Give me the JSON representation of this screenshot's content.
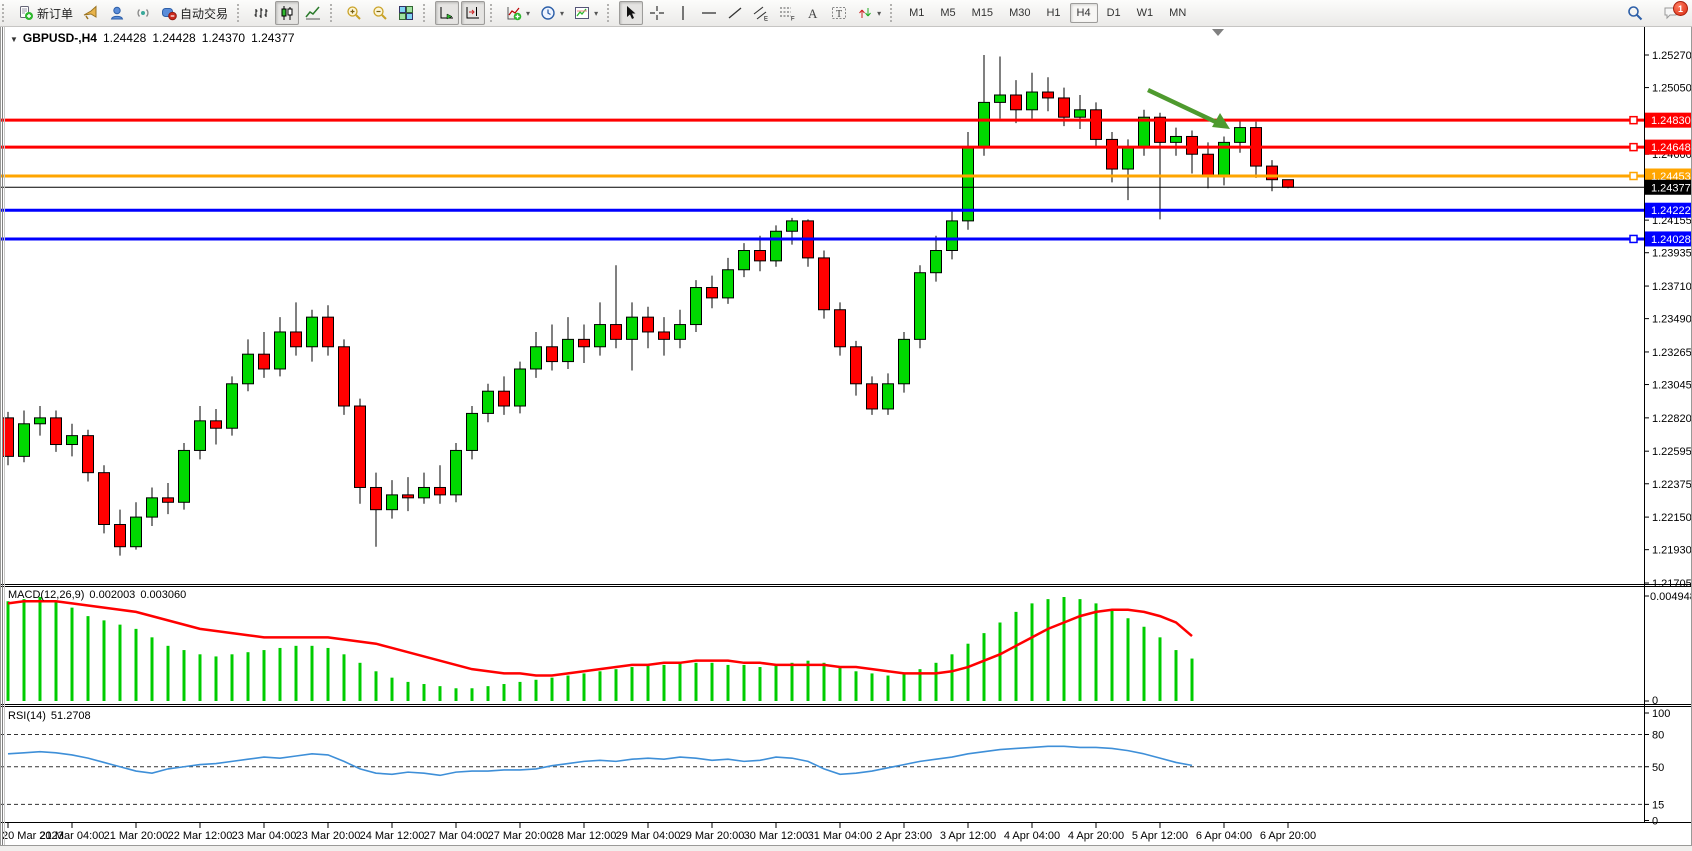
{
  "toolbar": {
    "groups": [
      {
        "buttons": [
          {
            "icon": "new-order",
            "name": "new-order",
            "label": "新订单"
          },
          {
            "icon": "horn",
            "name": "alerts"
          },
          {
            "icon": "profile",
            "name": "profile"
          },
          {
            "icon": "signal",
            "name": "signals"
          },
          {
            "icon": "autotrading",
            "name": "auto-trading",
            "label": "自动交易"
          }
        ]
      },
      {
        "buttons": [
          {
            "icon": "bar-chart",
            "name": "bar-chart-mode"
          },
          {
            "icon": "candlestick",
            "name": "candlestick-mode",
            "pressed": true
          },
          {
            "icon": "line-chart",
            "name": "line-chart-mode"
          }
        ]
      },
      {
        "buttons": [
          {
            "icon": "zoom-in",
            "name": "zoom-in"
          },
          {
            "icon": "zoom-out",
            "name": "zoom-out"
          },
          {
            "icon": "tile-windows",
            "name": "tile-windows"
          }
        ]
      },
      {
        "buttons": [
          {
            "icon": "auto-scroll",
            "name": "auto-scroll",
            "pressed": true
          },
          {
            "icon": "chart-shift",
            "name": "chart-shift",
            "pressed": true
          }
        ]
      },
      {
        "buttons": [
          {
            "icon": "indicators",
            "name": "indicators-list",
            "dropdown": true
          },
          {
            "icon": "periods",
            "name": "periods-list",
            "dropdown": true
          },
          {
            "icon": "templates",
            "name": "templates-list",
            "dropdown": true
          }
        ]
      },
      {
        "buttons": [
          {
            "icon": "cursor",
            "name": "cursor-tool",
            "pressed": true
          },
          {
            "icon": "crosshair",
            "name": "crosshair-tool"
          },
          {
            "icon": "vertical-line",
            "name": "vertical-line-tool"
          },
          {
            "icon": "horizontal-line",
            "name": "horizontal-line-tool"
          },
          {
            "icon": "trendline",
            "name": "trendline-tool"
          },
          {
            "icon": "equidistant-channel",
            "name": "equidistant-channel-tool"
          },
          {
            "icon": "fibonacci",
            "name": "fibonacci-tool"
          },
          {
            "icon": "text",
            "name": "text-tool"
          },
          {
            "icon": "text-label",
            "name": "text-label-tool"
          },
          {
            "icon": "arrows",
            "name": "arrows-tool",
            "dropdown": true
          }
        ]
      }
    ],
    "timeframes": [
      {
        "label": "M1"
      },
      {
        "label": "M5"
      },
      {
        "label": "M15"
      },
      {
        "label": "M30"
      },
      {
        "label": "H1"
      },
      {
        "label": "H4",
        "active": true
      },
      {
        "label": "D1"
      },
      {
        "label": "W1"
      },
      {
        "label": "MN"
      }
    ],
    "right_icons": [
      {
        "icon": "search",
        "name": "search"
      },
      {
        "icon": "chat",
        "name": "notifications",
        "badge": "1"
      }
    ]
  },
  "chart": {
    "title": {
      "collapse_arrow": "▼",
      "symbol": "GBPUSD-,H4",
      "open": "1.24428",
      "high": "1.24428",
      "low": "1.24370",
      "close": "1.24377"
    },
    "price_axis_ticks": [
      "1.25270",
      "1.25050",
      "1.24600",
      "1.24155",
      "1.23935",
      "1.23710",
      "1.23490",
      "1.23265",
      "1.23045",
      "1.22820",
      "1.22595",
      "1.22375",
      "1.22150",
      "1.21930",
      "1.21705"
    ],
    "hlines": [
      {
        "price": "1.24830",
        "color": "#FF0000",
        "width": 3,
        "handle": true
      },
      {
        "price": "1.24648",
        "color": "#FF0000",
        "width": 3,
        "handle": true
      },
      {
        "price": "1.24453",
        "color": "#FFA500",
        "width": 3,
        "handle": true
      },
      {
        "price": "1.24377",
        "color": "#000000",
        "width": 1,
        "handle": false,
        "role": "current-price"
      },
      {
        "price": "1.24222",
        "color": "#0000FF",
        "width": 3,
        "handle": false
      },
      {
        "price": "1.24028",
        "color": "#0000FF",
        "width": 3,
        "handle": true
      }
    ],
    "macd": {
      "name": "MACD(12,26,9)",
      "main": "0.002003",
      "signal": "0.003060",
      "axis_max": "0.004948",
      "axis_min": "0"
    },
    "rsi": {
      "name": "RSI(14)",
      "value": "51.2708",
      "axis_labels": [
        "100",
        "80",
        "50",
        "15",
        "0"
      ]
    }
  },
  "chart_data": {
    "type": "candlestick",
    "symbol": "GBPUSD-",
    "timeframe": "H4",
    "price_range": [
      1.21705,
      1.2527
    ],
    "ohlc": [
      [
        1.2282,
        1.2286,
        1.225,
        1.2256
      ],
      [
        1.2256,
        1.2287,
        1.2252,
        1.2278
      ],
      [
        1.2278,
        1.229,
        1.227,
        1.2282
      ],
      [
        1.2282,
        1.2287,
        1.2259,
        1.2264
      ],
      [
        1.2264,
        1.2278,
        1.2256,
        1.227
      ],
      [
        1.227,
        1.2274,
        1.2239,
        1.2245
      ],
      [
        1.2245,
        1.225,
        1.2204,
        1.221
      ],
      [
        1.221,
        1.222,
        1.2189,
        1.2195
      ],
      [
        1.2195,
        1.2225,
        1.2193,
        1.2215
      ],
      [
        1.2215,
        1.2235,
        1.2209,
        1.2228
      ],
      [
        1.2228,
        1.2238,
        1.2217,
        1.2225
      ],
      [
        1.2225,
        1.2265,
        1.222,
        1.226
      ],
      [
        1.226,
        1.229,
        1.2254,
        1.228
      ],
      [
        1.228,
        1.2288,
        1.2264,
        1.2275
      ],
      [
        1.2275,
        1.231,
        1.227,
        1.2305
      ],
      [
        1.2305,
        1.2335,
        1.23,
        1.2325
      ],
      [
        1.2325,
        1.234,
        1.2309,
        1.2315
      ],
      [
        1.2315,
        1.235,
        1.231,
        1.234
      ],
      [
        1.234,
        1.236,
        1.2324,
        1.233
      ],
      [
        1.233,
        1.2355,
        1.232,
        1.235
      ],
      [
        1.235,
        1.2358,
        1.2324,
        1.233
      ],
      [
        1.233,
        1.2335,
        1.2284,
        1.229
      ],
      [
        1.229,
        1.2295,
        1.2224,
        1.2235
      ],
      [
        1.2235,
        1.2245,
        1.2195,
        1.222
      ],
      [
        1.222,
        1.224,
        1.2214,
        1.223
      ],
      [
        1.223,
        1.2242,
        1.2219,
        1.2228
      ],
      [
        1.2228,
        1.2245,
        1.2224,
        1.2235
      ],
      [
        1.2235,
        1.225,
        1.2224,
        1.223
      ],
      [
        1.223,
        1.2265,
        1.2225,
        1.226
      ],
      [
        1.226,
        1.229,
        1.2254,
        1.2285
      ],
      [
        1.2285,
        1.2305,
        1.2279,
        1.23
      ],
      [
        1.23,
        1.231,
        1.2284,
        1.229
      ],
      [
        1.229,
        1.232,
        1.2285,
        1.2315
      ],
      [
        1.2315,
        1.234,
        1.2309,
        1.233
      ],
      [
        1.233,
        1.2345,
        1.2314,
        1.232
      ],
      [
        1.232,
        1.235,
        1.2315,
        1.2335
      ],
      [
        1.2335,
        1.2345,
        1.2319,
        1.233
      ],
      [
        1.233,
        1.236,
        1.2324,
        1.2345
      ],
      [
        1.2345,
        1.2385,
        1.2329,
        1.2335
      ],
      [
        1.2335,
        1.236,
        1.2314,
        1.235
      ],
      [
        1.235,
        1.2357,
        1.2329,
        1.234
      ],
      [
        1.234,
        1.235,
        1.2324,
        1.2335
      ],
      [
        1.2335,
        1.2355,
        1.2329,
        1.2345
      ],
      [
        1.2345,
        1.2375,
        1.234,
        1.237
      ],
      [
        1.237,
        1.2378,
        1.2356,
        1.2363
      ],
      [
        1.2363,
        1.239,
        1.2359,
        1.2382
      ],
      [
        1.2382,
        1.24,
        1.2377,
        1.2395
      ],
      [
        1.2395,
        1.2405,
        1.2381,
        1.2388
      ],
      [
        1.2388,
        1.2412,
        1.2384,
        1.2408
      ],
      [
        1.2408,
        1.2417,
        1.2399,
        1.2415
      ],
      [
        1.2415,
        1.2416,
        1.2384,
        1.239
      ],
      [
        1.239,
        1.2395,
        1.2349,
        1.2355
      ],
      [
        1.2355,
        1.236,
        1.2324,
        1.233
      ],
      [
        1.233,
        1.2334,
        1.2297,
        1.2305
      ],
      [
        1.2305,
        1.231,
        1.2284,
        1.2288
      ],
      [
        1.2288,
        1.2312,
        1.2284,
        1.2305
      ],
      [
        1.2305,
        1.234,
        1.2299,
        1.2335
      ],
      [
        1.2335,
        1.2385,
        1.2329,
        1.238
      ],
      [
        1.238,
        1.2405,
        1.2374,
        1.2395
      ],
      [
        1.2395,
        1.2422,
        1.2389,
        1.2415
      ],
      [
        1.2415,
        1.2475,
        1.2409,
        1.2465
      ],
      [
        1.2465,
        1.2527,
        1.2459,
        1.2495
      ],
      [
        1.2495,
        1.2526,
        1.2484,
        1.25
      ],
      [
        1.25,
        1.251,
        1.2481,
        1.249
      ],
      [
        1.249,
        1.2515,
        1.2484,
        1.2502
      ],
      [
        1.2502,
        1.2512,
        1.2489,
        1.2498
      ],
      [
        1.2498,
        1.2505,
        1.2479,
        1.2485
      ],
      [
        1.2485,
        1.25,
        1.2477,
        1.249
      ],
      [
        1.249,
        1.2495,
        1.2464,
        1.247
      ],
      [
        1.247,
        1.2475,
        1.2441,
        1.245
      ],
      [
        1.245,
        1.247,
        1.2429,
        1.2465
      ],
      [
        1.2465,
        1.249,
        1.2459,
        1.2485
      ],
      [
        1.2485,
        1.2488,
        1.2416,
        1.2468
      ],
      [
        1.2468,
        1.2478,
        1.2459,
        1.2472
      ],
      [
        1.2472,
        1.2476,
        1.2447,
        1.246
      ],
      [
        1.246,
        1.2468,
        1.2437,
        1.2445
      ],
      [
        1.2445,
        1.2472,
        1.2439,
        1.2468
      ],
      [
        1.2468,
        1.2483,
        1.2461,
        1.2478
      ],
      [
        1.2478,
        1.2482,
        1.2444,
        1.2452
      ],
      [
        1.2452,
        1.2456,
        1.2435,
        1.24428
      ],
      [
        1.24428,
        1.24428,
        1.2437,
        1.24377
      ]
    ],
    "x_labels": [
      "20 Mar 2023",
      "21 Mar 04:00",
      "21 Mar 20:00",
      "22 Mar 12:00",
      "23 Mar 04:00",
      "23 Mar 20:00",
      "24 Mar 12:00",
      "27 Mar 04:00",
      "27 Mar 20:00",
      "28 Mar 12:00",
      "29 Mar 04:00",
      "29 Mar 20:00",
      "30 Mar 12:00",
      "31 Mar 04:00",
      "2 Apr 23:00",
      "3 Apr 12:00",
      "4 Apr 04:00",
      "4 Apr 20:00",
      "5 Apr 12:00",
      "6 Apr 04:00",
      "6 Apr 20:00"
    ],
    "horizontal_lines": [
      {
        "price": 1.2483,
        "color": "red"
      },
      {
        "price": 1.24648,
        "color": "red"
      },
      {
        "price": 1.24453,
        "color": "orange"
      },
      {
        "price": 1.24377,
        "color": "black"
      },
      {
        "price": 1.24222,
        "color": "blue"
      },
      {
        "price": 1.24028,
        "color": "blue"
      }
    ],
    "macd": {
      "params": [
        12,
        26,
        9
      ],
      "range": [
        0,
        0.004948
      ],
      "current": 0.002003,
      "current_signal": 0.00306,
      "hist": [
        0.0047,
        0.0048,
        0.0049,
        0.0047,
        0.0044,
        0.004,
        0.0038,
        0.0036,
        0.0034,
        0.003,
        0.0026,
        0.0024,
        0.0022,
        0.0021,
        0.0022,
        0.0023,
        0.0024,
        0.0025,
        0.0026,
        0.0026,
        0.0025,
        0.0022,
        0.0018,
        0.0014,
        0.0011,
        0.0009,
        0.0008,
        0.0007,
        0.0006,
        0.0006,
        0.0007,
        0.0008,
        0.0009,
        0.001,
        0.0011,
        0.0012,
        0.0013,
        0.0014,
        0.0015,
        0.0016,
        0.0017,
        0.0017,
        0.0018,
        0.0018,
        0.0018,
        0.0017,
        0.0017,
        0.0016,
        0.0017,
        0.0018,
        0.0019,
        0.0018,
        0.0016,
        0.0014,
        0.0013,
        0.0012,
        0.0013,
        0.0015,
        0.0018,
        0.0022,
        0.0027,
        0.0032,
        0.0037,
        0.0042,
        0.0046,
        0.0048,
        0.0049,
        0.0048,
        0.0046,
        0.0043,
        0.0039,
        0.0035,
        0.003,
        0.0024,
        0.002
      ],
      "signal": [
        0.0046,
        0.0047,
        0.0047,
        0.0047,
        0.0046,
        0.0045,
        0.0044,
        0.0043,
        0.0042,
        0.004,
        0.0038,
        0.0036,
        0.0034,
        0.0033,
        0.0032,
        0.0031,
        0.003,
        0.003,
        0.003,
        0.003,
        0.003,
        0.0029,
        0.0028,
        0.0027,
        0.0025,
        0.0023,
        0.0021,
        0.0019,
        0.0017,
        0.0015,
        0.0014,
        0.0013,
        0.0013,
        0.0012,
        0.0012,
        0.0013,
        0.0014,
        0.0015,
        0.0016,
        0.0017,
        0.0017,
        0.0018,
        0.0018,
        0.0019,
        0.0019,
        0.0019,
        0.0018,
        0.0018,
        0.0017,
        0.0017,
        0.0017,
        0.0017,
        0.0016,
        0.0016,
        0.0015,
        0.0014,
        0.0013,
        0.0013,
        0.0013,
        0.0014,
        0.0016,
        0.0019,
        0.0022,
        0.0026,
        0.003,
        0.0034,
        0.0037,
        0.004,
        0.0042,
        0.0043,
        0.0043,
        0.0042,
        0.004,
        0.0037,
        0.00306
      ]
    },
    "rsi": {
      "period": 14,
      "range": [
        0,
        100
      ],
      "levels": [
        80,
        50,
        15
      ],
      "current": 51.2708,
      "values": [
        62,
        63,
        64,
        63,
        61,
        58,
        54,
        50,
        46,
        44,
        48,
        50,
        52,
        53,
        55,
        57,
        59,
        58,
        60,
        62,
        61,
        55,
        48,
        44,
        43,
        45,
        44,
        42,
        45,
        46,
        46,
        47,
        47,
        48,
        51,
        53,
        55,
        56,
        55,
        57,
        58,
        57,
        59,
        58,
        56,
        57,
        55,
        56,
        59,
        58,
        55,
        48,
        43,
        44,
        46,
        49,
        52,
        55,
        57,
        59,
        62,
        64,
        66,
        67,
        68,
        69,
        69,
        68,
        68,
        67,
        65,
        62,
        58,
        54,
        51.27
      ]
    },
    "annotations": [
      {
        "type": "arrow",
        "direction": "down-right",
        "color": "#4E9A2E"
      }
    ]
  },
  "colors": {
    "bull": "#00D800",
    "bear": "#FF0000",
    "wick": "#000000",
    "macd_hist": "#00CC00",
    "macd_signal": "#FF0000",
    "rsi_line": "#3E8FD8",
    "axis_line": "#000000",
    "arrow": "#4E9A2E"
  }
}
